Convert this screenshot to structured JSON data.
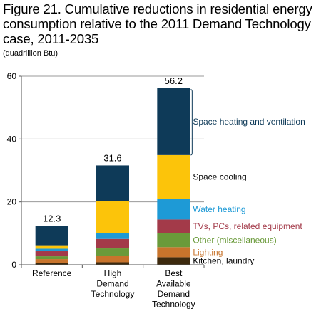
{
  "title": "Figure 21. Cumulative reductions in residential energy consumption relative to the 2011 Demand Technology case, 2011-2035",
  "unit_label": "(quadrillion Btu)",
  "chart_data": {
    "type": "bar",
    "stacked": true,
    "ylim": [
      0,
      60
    ],
    "yticks": [
      0,
      20,
      40,
      60
    ],
    "grid": true,
    "categories": [
      [
        "Reference"
      ],
      [
        "High",
        "Demand",
        "Technology"
      ],
      [
        "Best",
        "Available",
        "Demand",
        "Technology"
      ]
    ],
    "totals": [
      "12.3",
      "31.6",
      "56.2"
    ],
    "series": [
      {
        "name": "Kitchen, laundry",
        "color": "#3d2a0e",
        "label_color": "#000000",
        "values": [
          0.6,
          0.8,
          2.4
        ]
      },
      {
        "name": "Lighting",
        "color": "#c8742c",
        "label_color": "#c8742c",
        "values": [
          1.2,
          2.0,
          3.2
        ]
      },
      {
        "name": "Other (miscellaneous)",
        "color": "#6a9a3a",
        "label_color": "#6a9a3a",
        "values": [
          0.9,
          2.4,
          4.4
        ]
      },
      {
        "name": "TVs, PCs, related equipment",
        "color": "#a33a49",
        "label_color": "#a33a49",
        "values": [
          1.6,
          3.0,
          4.4
        ]
      },
      {
        "name": "Water heating",
        "color": "#1e9ad6",
        "label_color": "#1e9ad6",
        "values": [
          0.8,
          1.8,
          6.6
        ]
      },
      {
        "name": "Space cooling",
        "color": "#fcc40a",
        "label_color": "#000000",
        "values": [
          1.1,
          10.2,
          13.9
        ]
      },
      {
        "name": "Space heating and ventilation",
        "color": "#0e3a58",
        "label_color": "#0e3a58",
        "values": [
          6.1,
          11.4,
          21.3
        ]
      }
    ]
  }
}
